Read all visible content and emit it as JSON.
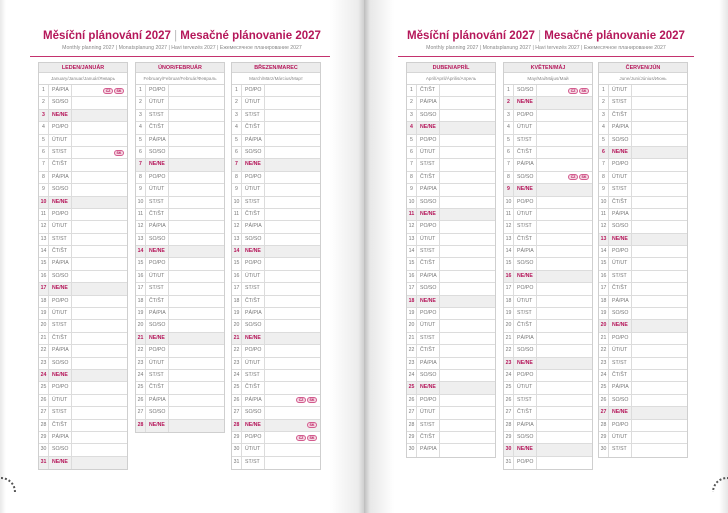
{
  "title_cz": "Měsíční plánování 2027",
  "title_sk": "Mesačné plánovanie 2027",
  "subtitle": "Monthly planning 2027 | Monatsplanung 2027 | Havi tervezés 2027 | Ежемесячное планирование 2027",
  "weekdays": [
    "PO/PO",
    "ÚT/UT",
    "ST/ST",
    "ČT/ŠT",
    "PÁ/PIA",
    "SO/SO",
    "NE/NE"
  ],
  "accent_color": "#b5175a",
  "pages": [
    {
      "months": [
        {
          "name": "LEDEN/JANUÁR",
          "subtitle": "January/Januar/Január/Январь",
          "start": 4,
          "length": 31,
          "holidays": {
            "1": [
              "CZ",
              "SK"
            ],
            "6": [
              "SK"
            ]
          }
        },
        {
          "name": "ÚNOR/FEBRUÁR",
          "subtitle": "February/Februar/Február/Февраль",
          "start": 0,
          "length": 28,
          "holidays": {}
        },
        {
          "name": "BŘEZEN/MAREC",
          "subtitle": "March/März/Március/Март",
          "start": 0,
          "length": 31,
          "holidays": {
            "26": [
              "CZ",
              "SK"
            ],
            "28": [
              "SK"
            ],
            "29": [
              "CZ",
              "SK"
            ]
          }
        }
      ]
    },
    {
      "months": [
        {
          "name": "DUBEN/APRÍL",
          "subtitle": "April/April/Április/Апрель",
          "start": 3,
          "length": 30,
          "holidays": {}
        },
        {
          "name": "KVĚTEN/MÁJ",
          "subtitle": "May/Mai/Május/Май",
          "start": 5,
          "length": 31,
          "holidays": {
            "1": [
              "CZ",
              "SK"
            ],
            "8": [
              "CZ",
              "SK"
            ]
          }
        },
        {
          "name": "ČERVEN/JÚN",
          "subtitle": "June/Juni/Június/Июнь",
          "start": 1,
          "length": 30,
          "holidays": {}
        }
      ]
    }
  ]
}
